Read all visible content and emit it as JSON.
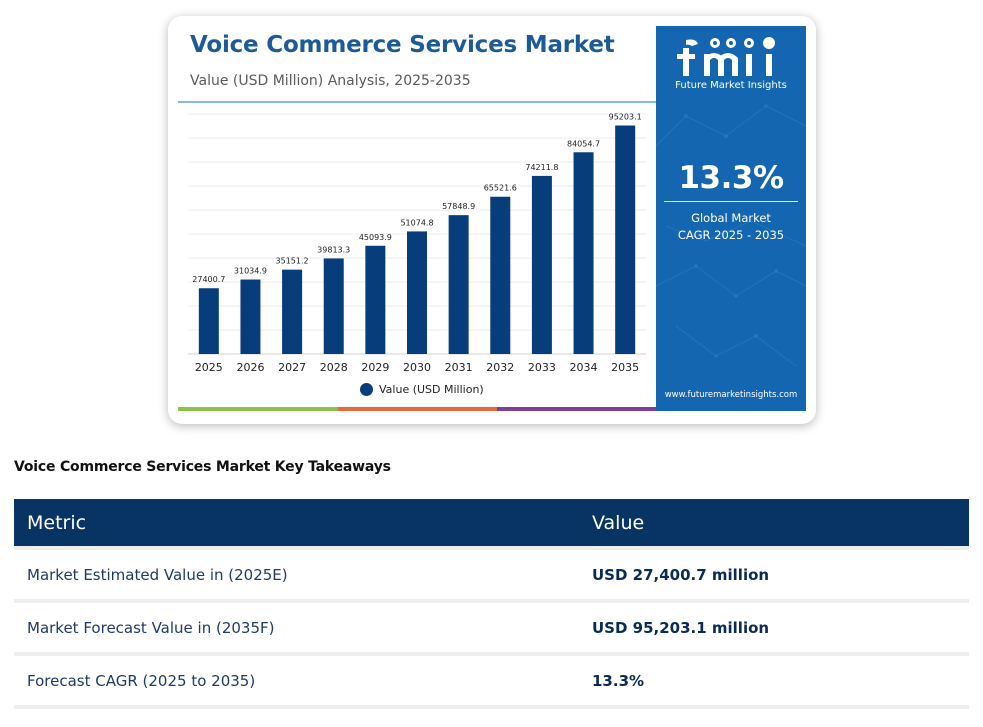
{
  "chart": {
    "title": "Voice Commerce Services Market",
    "subtitle": "Value (USD Million) Analysis, 2025-2035",
    "legend_label": "Value (USD Million)"
  },
  "chart_data": {
    "type": "bar",
    "title": "Voice Commerce Services Market",
    "subtitle": "Value (USD Million) Analysis, 2025-2035",
    "categories": [
      "2025",
      "2026",
      "2027",
      "2028",
      "2029",
      "2030",
      "2031",
      "2032",
      "2033",
      "2034",
      "2035"
    ],
    "series": [
      {
        "name": "Value (USD Million)",
        "values": [
          27400.7,
          31034.9,
          35151.2,
          39813.3,
          45093.9,
          51074.8,
          57848.9,
          65521.6,
          74211.8,
          84054.7,
          95203.1
        ],
        "labels": [
          "27400.7",
          "31034.9",
          "35151.2",
          "39813.3",
          "45093.9",
          "51074.8",
          "57848.9",
          "65521.6",
          "74211.8",
          "84054.7",
          "95203.1"
        ]
      }
    ],
    "xlabel": "",
    "ylabel": "",
    "ylim": [
      0,
      100000
    ],
    "grid": true,
    "legend": "bottom-center"
  },
  "side_panel": {
    "brand_name": "Future Market Insights",
    "cagr_value": "13.3%",
    "cagr_label_line1": "Global Market",
    "cagr_label_line2": "CAGR 2025 - 2035",
    "website": "www.futuremarketinsights.com"
  },
  "colors": {
    "bar": "#073d7a",
    "panel": "#1466b0",
    "title": "#1d5a9a",
    "table_header": "#073463",
    "strip": [
      "#8bc34a",
      "#e8683a",
      "#7b3f9e"
    ]
  },
  "takeaways": {
    "heading": "Voice Commerce Services Market Key Takeaways",
    "columns": [
      "Metric",
      "Value"
    ],
    "rows": [
      {
        "metric": "Market Estimated Value in (2025E)",
        "value": "USD 27,400.7 million"
      },
      {
        "metric": "Market Forecast Value in (2035F)",
        "value": "USD 95,203.1 million"
      },
      {
        "metric": "Forecast CAGR (2025 to 2035)",
        "value": "13.3%"
      }
    ]
  }
}
